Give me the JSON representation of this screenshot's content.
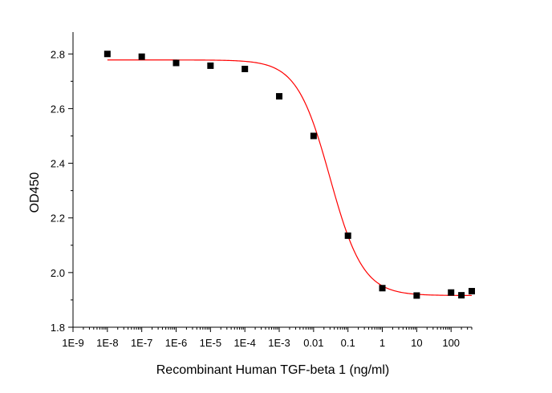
{
  "chart_data": {
    "type": "scatter",
    "title": "",
    "xlabel": "Recombinant Human TGF-beta 1 (ng/ml)",
    "ylabel": "OD450",
    "x_scale": "log",
    "xlim": [
      1e-09,
      400
    ],
    "ylim": [
      1.8,
      2.88
    ],
    "x_ticks": [
      {
        "value": 1e-09,
        "label": "1E-9"
      },
      {
        "value": 1e-08,
        "label": "1E-8"
      },
      {
        "value": 1e-07,
        "label": "1E-7"
      },
      {
        "value": 1e-06,
        "label": "1E-6"
      },
      {
        "value": 1e-05,
        "label": "1E-5"
      },
      {
        "value": 0.0001,
        "label": "1E-4"
      },
      {
        "value": 0.001,
        "label": "1E-3"
      },
      {
        "value": 0.01,
        "label": "0.01"
      },
      {
        "value": 0.1,
        "label": "0.1"
      },
      {
        "value": 1,
        "label": "1"
      },
      {
        "value": 10,
        "label": "10"
      },
      {
        "value": 100,
        "label": "100"
      }
    ],
    "y_ticks": [
      {
        "value": 1.8,
        "label": "1.8"
      },
      {
        "value": 2.0,
        "label": "2.0"
      },
      {
        "value": 2.2,
        "label": "2.2"
      },
      {
        "value": 2.4,
        "label": "2.4"
      },
      {
        "value": 2.6,
        "label": "2.6"
      },
      {
        "value": 2.8,
        "label": "2.8"
      }
    ],
    "series": [
      {
        "kind": "points",
        "marker": "square",
        "color": "#000000",
        "points": [
          {
            "x": 1e-08,
            "y": 2.8
          },
          {
            "x": 1e-07,
            "y": 2.79
          },
          {
            "x": 1e-06,
            "y": 2.767
          },
          {
            "x": 1e-05,
            "y": 2.757
          },
          {
            "x": 0.0001,
            "y": 2.745
          },
          {
            "x": 0.001,
            "y": 2.645
          },
          {
            "x": 0.01,
            "y": 2.5
          },
          {
            "x": 0.1,
            "y": 2.135
          },
          {
            "x": 1,
            "y": 1.943
          },
          {
            "x": 10,
            "y": 1.916
          },
          {
            "x": 100,
            "y": 1.927
          },
          {
            "x": 200,
            "y": 1.917
          },
          {
            "x": 400,
            "y": 1.932
          }
        ]
      },
      {
        "kind": "fit",
        "model": "4PL",
        "color": "#ff0000",
        "top": 2.778,
        "bottom": 1.916,
        "ec50": 0.03,
        "hill": 0.9,
        "x_range": [
          1e-08,
          400
        ]
      }
    ],
    "grid": false,
    "legend": "none"
  }
}
